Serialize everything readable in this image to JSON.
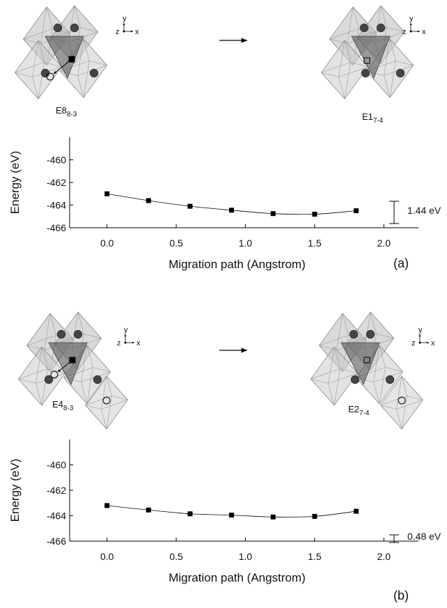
{
  "chart_data": [
    {
      "type": "line",
      "ylabel": "Energy (eV)",
      "xlabel": "Migration path (Angstrom)",
      "panel_label": "(a)",
      "annotation": "1.44 eV",
      "x": [
        0,
        0.3,
        0.6,
        0.9,
        1.2,
        1.5,
        1.8
      ],
      "values": [
        -463.0,
        -463.6,
        -464.1,
        -464.45,
        -464.75,
        -464.8,
        -464.5
      ],
      "color": "#000000",
      "xlim": [
        -0.27,
        2.25
      ],
      "ylim": [
        -466,
        -458
      ],
      "xticks": [
        {
          "value": 0,
          "label": "0.0"
        },
        0.5,
        {
          "value": 1,
          "label": "1.0"
        },
        1.5,
        {
          "value": 2,
          "label": "2.0"
        }
      ],
      "yticks": [
        -460,
        -462,
        -464,
        -466
      ]
    },
    {
      "type": "line",
      "ylabel": "Energy (eV)",
      "xlabel": "Migration path (Angstrom)",
      "panel_label": "(b)",
      "annotation": "0.48 eV",
      "x": [
        0,
        0.3,
        0.6,
        0.9,
        1.2,
        1.5,
        1.8
      ],
      "values": [
        -463.2,
        -463.55,
        -463.85,
        -463.95,
        -464.1,
        -464.05,
        -463.65
      ],
      "color": "#000000",
      "xlim": [
        -0.27,
        2.25
      ],
      "ylim": [
        -466,
        -458
      ],
      "xticks": [
        {
          "value": 0,
          "label": "0.0"
        },
        0.5,
        {
          "value": 1,
          "label": "1.0"
        },
        1.5,
        {
          "value": 2,
          "label": "2.0"
        }
      ],
      "yticks": [
        -460,
        -462,
        -464,
        -466
      ]
    }
  ],
  "diagrams": [
    {
      "label": "E8",
      "subscript": "8-3",
      "axes": [
        "y",
        "z",
        "x"
      ]
    },
    {
      "label": "E1",
      "subscript": "7-4",
      "axes": [
        "y",
        "z",
        "x"
      ]
    },
    {
      "label": "E4",
      "subscript": "8-3",
      "axes": [
        "y",
        "z",
        "x"
      ]
    },
    {
      "label": "E2",
      "subscript": "7-4",
      "axes": [
        "y",
        "z",
        "x"
      ]
    }
  ]
}
